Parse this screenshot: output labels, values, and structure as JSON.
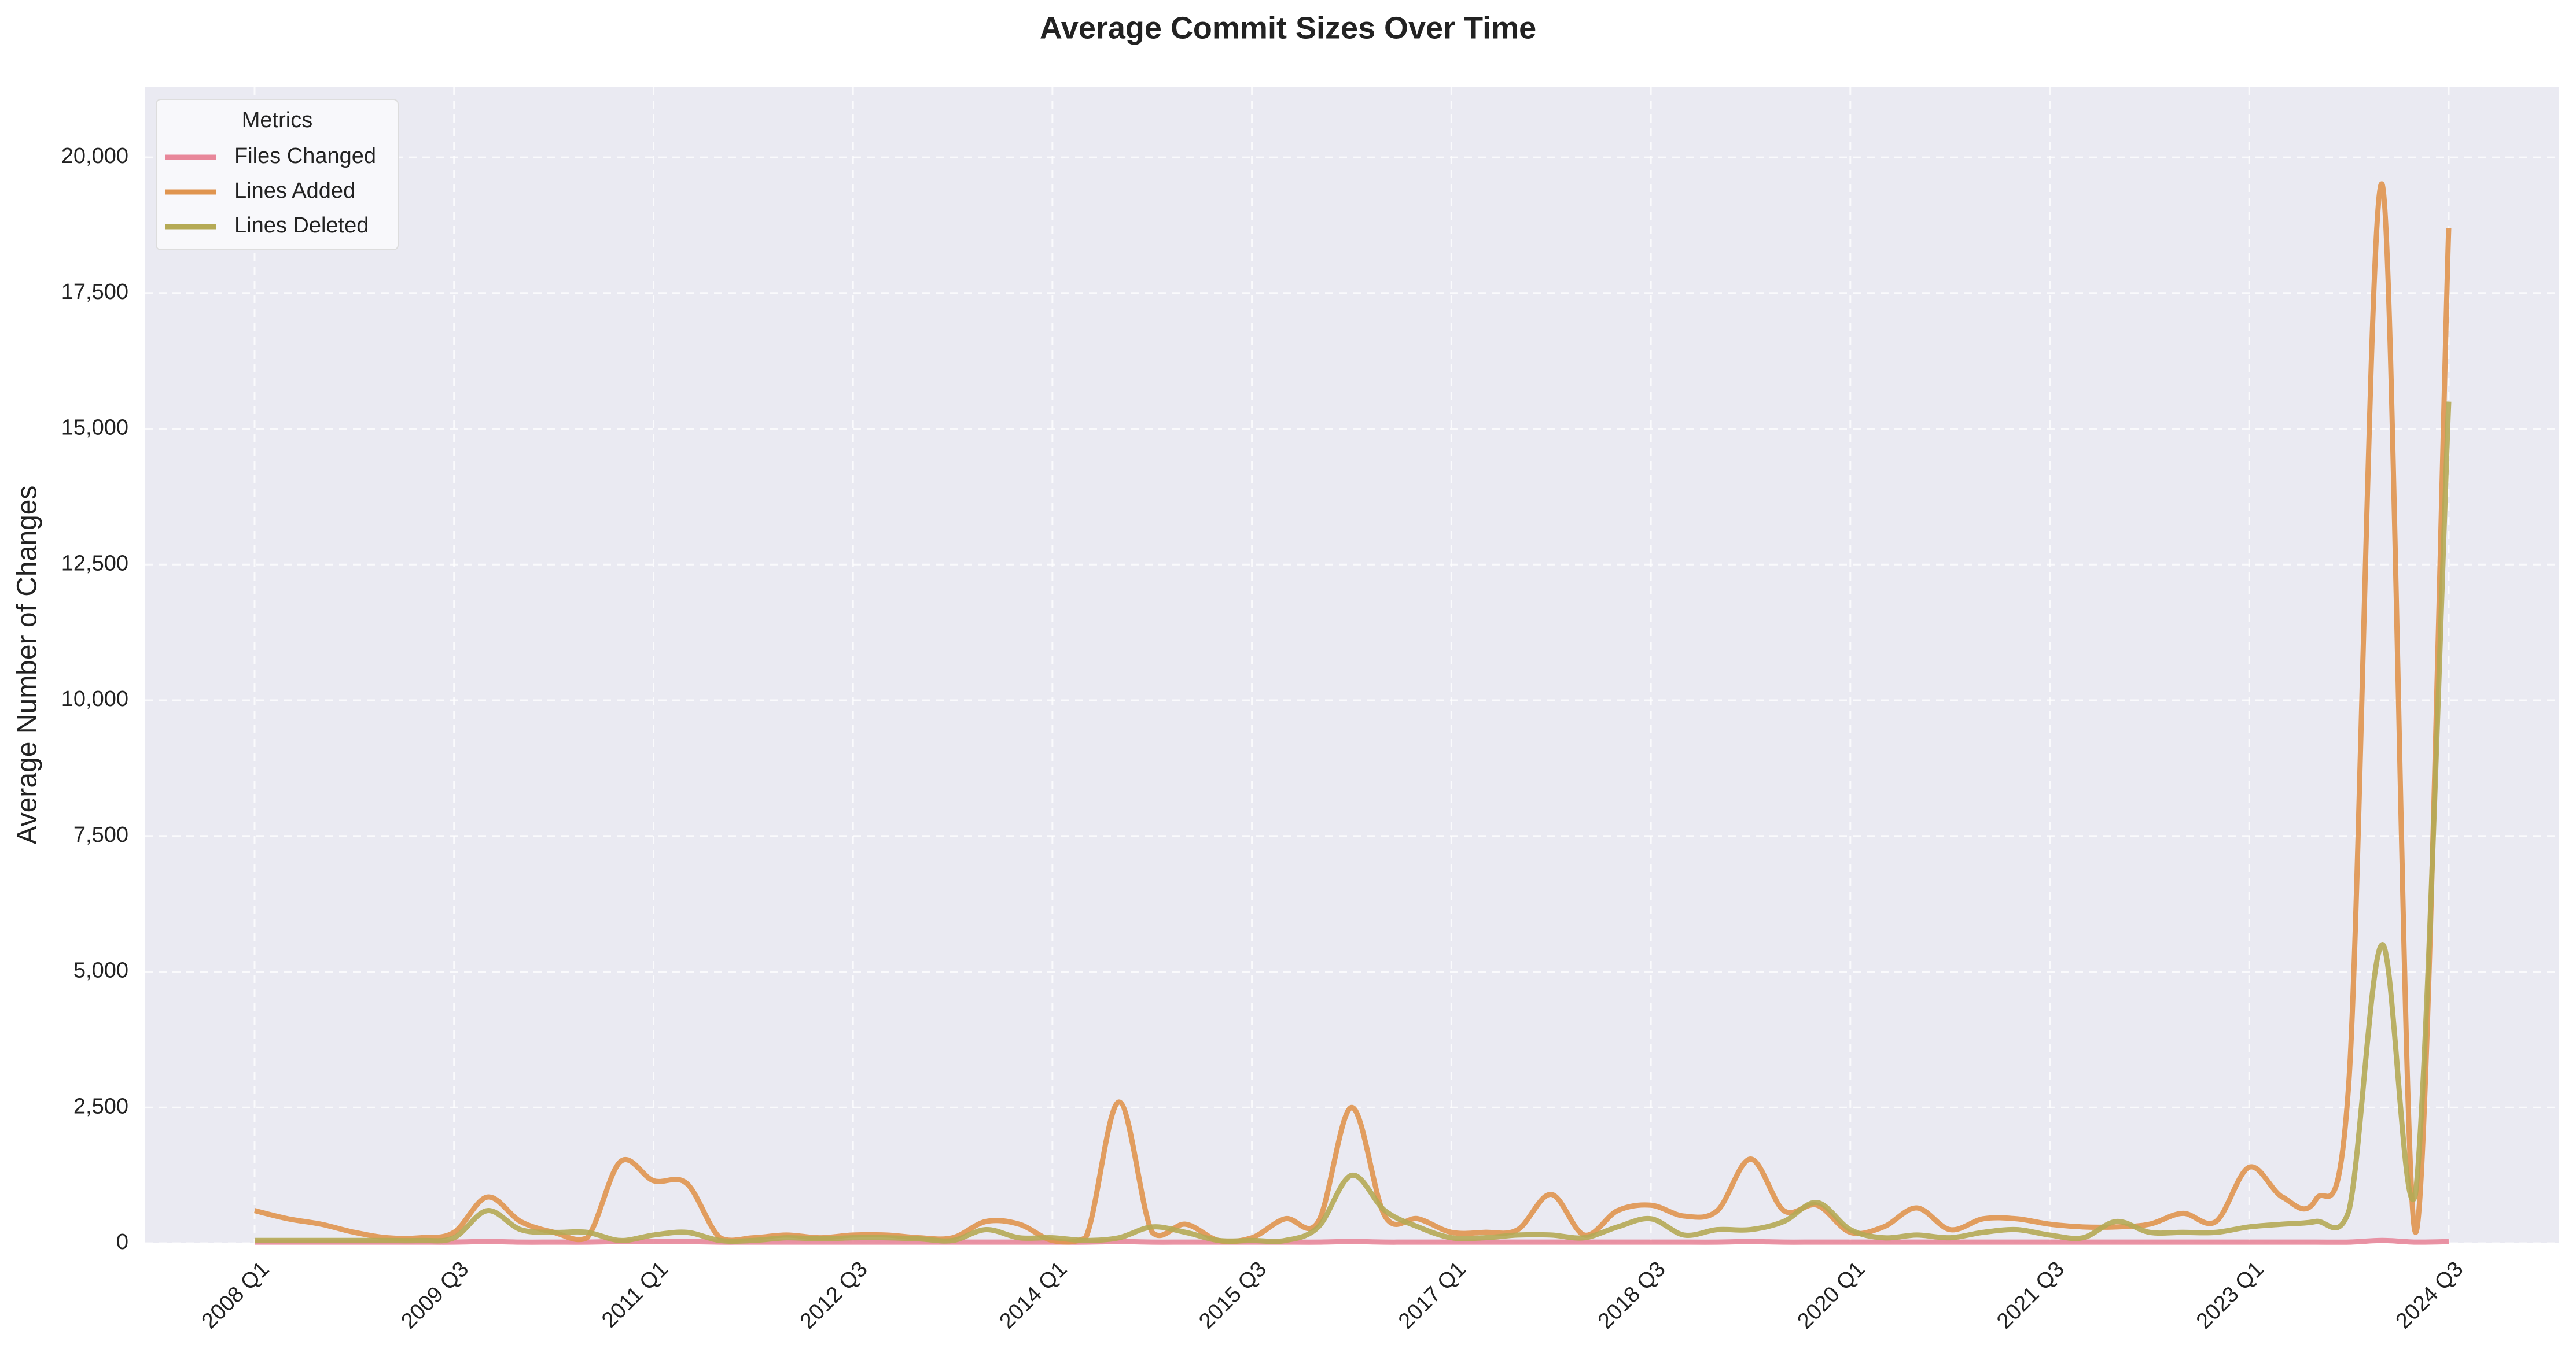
{
  "chart_data": {
    "type": "line",
    "title": "Average Commit Sizes Over Time",
    "y_label": "Average Number of Changes",
    "legend_title": "Metrics",
    "legend": "upper left",
    "grid": true,
    "categories": [
      "2008 Q1",
      null,
      null,
      null,
      null,
      null,
      "2009 Q3",
      null,
      null,
      null,
      null,
      null,
      "2011 Q1",
      null,
      null,
      null,
      null,
      null,
      "2012 Q3",
      null,
      null,
      null,
      null,
      null,
      "2014 Q1",
      null,
      null,
      null,
      null,
      null,
      "2015 Q3",
      null,
      null,
      null,
      null,
      null,
      "2017 Q1",
      null,
      null,
      null,
      null,
      null,
      "2018 Q3",
      null,
      null,
      null,
      null,
      null,
      "2020 Q1",
      null,
      null,
      null,
      null,
      null,
      "2021 Q3",
      null,
      null,
      null,
      null,
      null,
      "2023 Q1",
      null,
      null,
      null,
      null,
      null,
      "2024 Q3"
    ],
    "ylim": [
      0,
      21300
    ],
    "yticks": [
      0,
      {
        "value": 2500,
        "label": "2,500"
      },
      {
        "value": 5000,
        "label": "5,000"
      },
      {
        "value": 7500,
        "label": "7,500"
      },
      {
        "value": 10000,
        "label": "10,000"
      },
      {
        "value": 12500,
        "label": "12,500"
      },
      {
        "value": 15000,
        "label": "15,000"
      },
      {
        "value": 17500,
        "label": "17,500"
      },
      {
        "value": 20000,
        "label": "20,000"
      }
    ],
    "series": [
      {
        "name": "Files Changed",
        "color": "#e8879a",
        "values": [
          20,
          20,
          20,
          20,
          20,
          20,
          20,
          30,
          20,
          20,
          20,
          30,
          30,
          30,
          20,
          20,
          20,
          20,
          20,
          20,
          20,
          20,
          20,
          20,
          20,
          20,
          30,
          20,
          20,
          20,
          20,
          20,
          20,
          30,
          20,
          20,
          20,
          20,
          20,
          20,
          20,
          20,
          20,
          20,
          20,
          30,
          20,
          20,
          20,
          20,
          20,
          20,
          20,
          20,
          20,
          20,
          20,
          20,
          20,
          20,
          20,
          20,
          20,
          20,
          50,
          20,
          30
        ]
      },
      {
        "name": "Lines Added",
        "color": "#e0954f",
        "values": [
          600,
          450,
          350,
          200,
          100,
          100,
          200,
          850,
          400,
          200,
          100,
          1500,
          1150,
          1100,
          100,
          100,
          150,
          100,
          150,
          150,
          100,
          100,
          400,
          350,
          50,
          100,
          2600,
          200,
          350,
          50,
          100,
          450,
          400,
          2500,
          500,
          450,
          200,
          200,
          250,
          900,
          150,
          600,
          700,
          500,
          600,
          1550,
          600,
          700,
          200,
          300,
          650,
          250,
          450,
          450,
          350,
          300,
          300,
          350,
          550,
          400,
          1400,
          850,
          800,
          3000,
          19500,
          200,
          18700
        ]
      },
      {
        "name": "Lines Deleted",
        "color": "#b5aa55",
        "values": [
          50,
          50,
          50,
          50,
          50,
          50,
          100,
          600,
          250,
          200,
          200,
          50,
          150,
          200,
          50,
          50,
          100,
          80,
          100,
          100,
          80,
          50,
          250,
          100,
          100,
          50,
          100,
          300,
          200,
          50,
          50,
          50,
          300,
          1250,
          600,
          300,
          100,
          100,
          150,
          150,
          100,
          300,
          450,
          150,
          250,
          250,
          400,
          750,
          250,
          100,
          150,
          100,
          200,
          250,
          150,
          100,
          400,
          200,
          200,
          200,
          300,
          350,
          400,
          600,
          5500,
          900,
          15500
        ]
      }
    ]
  }
}
